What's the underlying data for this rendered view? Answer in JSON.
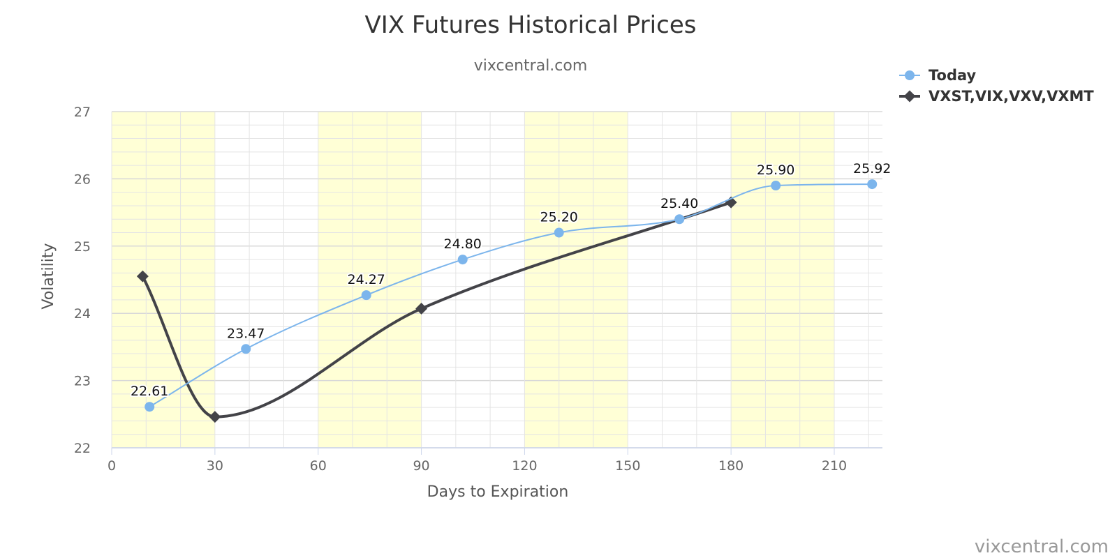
{
  "chart_data": {
    "type": "line",
    "title": "VIX Futures Historical Prices",
    "subtitle": "vixcentral.com",
    "xlabel": "Days to Expiration",
    "ylabel": "Volatility",
    "xlim": [
      0,
      224
    ],
    "ylim": [
      22,
      27
    ],
    "x_ticks": [
      0,
      30,
      60,
      90,
      120,
      150,
      180,
      210
    ],
    "y_ticks": [
      22,
      23,
      24,
      25,
      26,
      27
    ],
    "bands": [
      [
        0,
        30
      ],
      [
        60,
        90
      ],
      [
        120,
        150
      ],
      [
        180,
        210
      ]
    ],
    "grid": true,
    "legend_position": "top-right",
    "series": [
      {
        "name": "Today",
        "color": "#7cb5ec",
        "marker": "circle",
        "x": [
          11,
          39,
          74,
          102,
          130,
          165,
          193,
          221
        ],
        "y": [
          22.61,
          23.47,
          24.27,
          24.8,
          25.2,
          25.4,
          25.9,
          25.92
        ],
        "labels": [
          "22.61",
          "23.47",
          "24.27",
          "24.80",
          "25.20",
          "25.40",
          "25.90",
          "25.92"
        ]
      },
      {
        "name": "VXST,VIX,VXV,VXMT",
        "color": "#434348",
        "marker": "diamond",
        "x": [
          9,
          30,
          90,
          180
        ],
        "y": [
          24.55,
          22.46,
          24.07,
          25.65
        ]
      }
    ],
    "credit": "vixcentral.com"
  }
}
